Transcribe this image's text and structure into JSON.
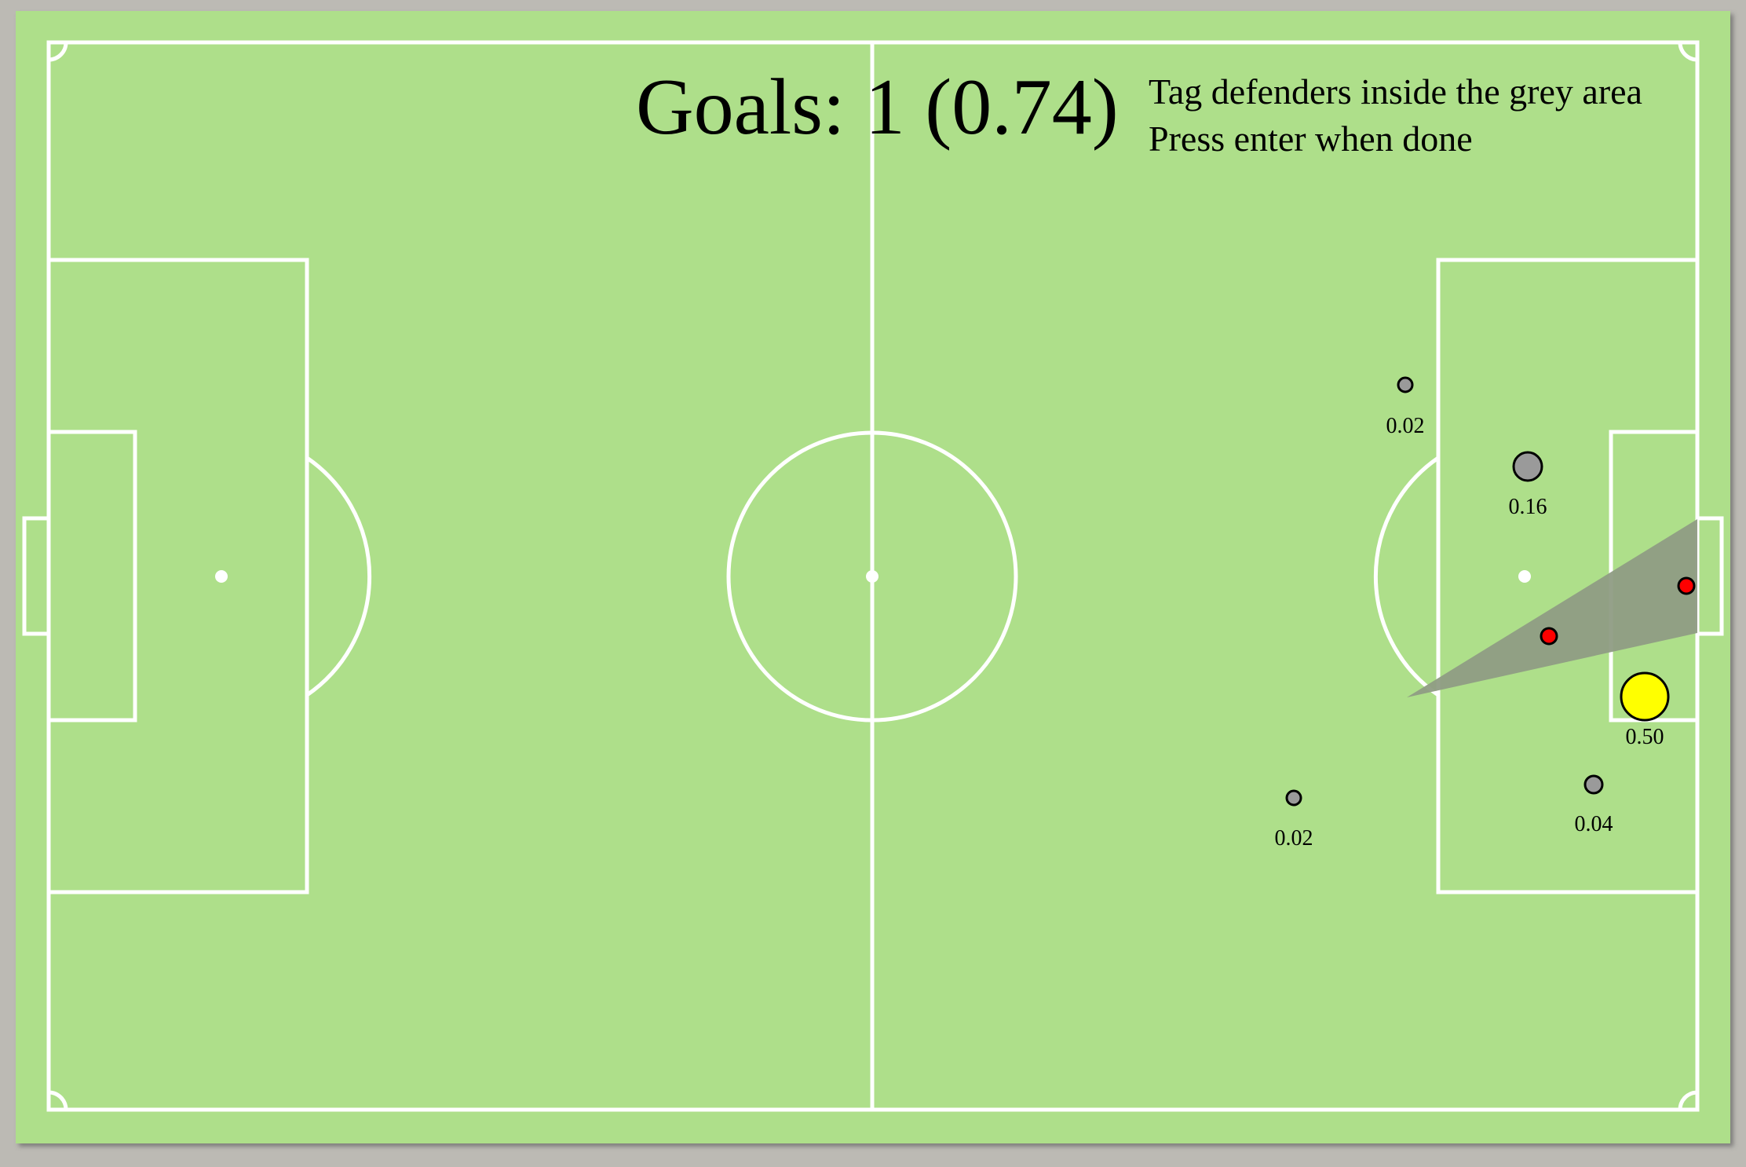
{
  "score": {
    "goals_label": "Goals: 1 (0.74)"
  },
  "instructions": {
    "line1": "Tag defenders inside the grey area",
    "line2": "Press enter when done"
  },
  "colors": {
    "background": "#bcbab4",
    "pitch": "#aedf8a",
    "lines": "#ffffff",
    "shot_cone": "#8f9c84",
    "attacker": "#9a9a9a",
    "shooter": "#ffff00",
    "defender": "#ff0000"
  },
  "attackers": [
    {
      "label": "0.02",
      "value": 0.02
    },
    {
      "label": "0.16",
      "value": 0.16
    },
    {
      "label": "0.50",
      "value": 0.5
    },
    {
      "label": "0.04",
      "value": 0.04
    },
    {
      "label": "0.02",
      "value": 0.02
    }
  ],
  "defenders": [
    {
      "name": "defender-1"
    },
    {
      "name": "defender-2"
    }
  ]
}
